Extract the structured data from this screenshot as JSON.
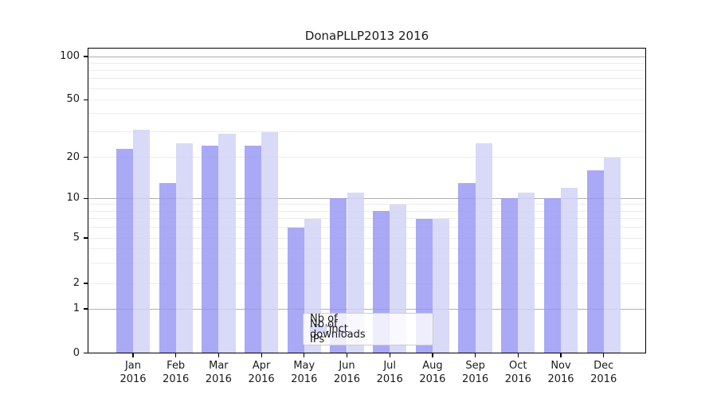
{
  "title": "DonaPLLP2013 2016",
  "chart_data": {
    "type": "bar",
    "title": "DonaPLLP2013 2016",
    "categories": [
      "Jan 2016",
      "Feb 2016",
      "Mar 2016",
      "Apr 2016",
      "May 2016",
      "Jun 2016",
      "Jul 2016",
      "Aug 2016",
      "Sep 2016",
      "Oct 2016",
      "Nov 2016",
      "Dec 2016"
    ],
    "x_months": [
      "Jan",
      "Feb",
      "Mar",
      "Apr",
      "May",
      "Jun",
      "Jul",
      "Aug",
      "Sep",
      "Oct",
      "Nov",
      "Dec"
    ],
    "x_year": "2016",
    "series": [
      {
        "name": "Nb of distinct IPs",
        "color": "#a9a9f5",
        "values": [
          23,
          13,
          24,
          24,
          6,
          10,
          8,
          7,
          13,
          10,
          10,
          16
        ]
      },
      {
        "name": "Nb of downloads",
        "color": "#d9d9f8",
        "values": [
          31,
          25,
          29,
          30,
          7,
          11,
          9,
          7,
          25,
          11,
          12,
          20
        ]
      }
    ],
    "y_axis": {
      "scale": "symlog-like (log above 1, compressed toward 0)",
      "ylim": [
        0,
        100
      ],
      "tick_labels": [
        0,
        1,
        2,
        5,
        10,
        20,
        50,
        100
      ],
      "major_gridlines": [
        1,
        10,
        100
      ],
      "minor_gridlines": [
        2,
        3,
        4,
        5,
        6,
        7,
        8,
        9,
        20,
        30,
        40,
        50,
        60,
        70,
        80,
        90
      ]
    },
    "grid": true,
    "legend": {
      "position": "lower-center",
      "entries": [
        "Nb of distinct IPs",
        "Nb of downloads"
      ]
    },
    "colors": {
      "bar_distinct_ips": "#a9a9f5",
      "bar_downloads": "#d9d9f8",
      "major_grid": "#b0b0b0",
      "minor_grid": "#ececec",
      "spine": "#000000",
      "text": "#1a1a1a"
    }
  }
}
